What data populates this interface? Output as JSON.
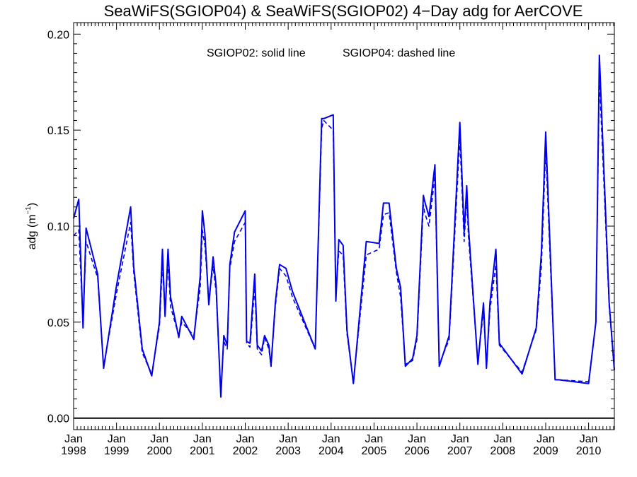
{
  "chart_data": {
    "type": "line",
    "title": "SeaWiFS(SGIOP04) & SeaWiFS(SGIOP02) 4−Day adg for AerCOVE",
    "annotation": {
      "solid": "SGIOP02: solid line",
      "dashed": "SGIOP04: dashed line"
    },
    "ylabel": {
      "main": "adg (m",
      "exp": "−1",
      "close": ")"
    },
    "xlabel": "",
    "xlim": [
      1998.0,
      2010.6
    ],
    "ylim": [
      -0.006,
      0.206
    ],
    "y_ticks": [
      0.0,
      0.05,
      0.1,
      0.15,
      0.2
    ],
    "y_tick_labels": [
      "0.00",
      "0.05",
      "0.10",
      "0.15",
      "0.20"
    ],
    "x_ticks": [
      {
        "x": 1998,
        "month": "Jan",
        "year": "1998"
      },
      {
        "x": 1999,
        "month": "Jan",
        "year": "1999"
      },
      {
        "x": 2000,
        "month": "Jan",
        "year": "2000"
      },
      {
        "x": 2001,
        "month": "Jan",
        "year": "2001"
      },
      {
        "x": 2002,
        "month": "Jan",
        "year": "2002"
      },
      {
        "x": 2003,
        "month": "Jan",
        "year": "2003"
      },
      {
        "x": 2004,
        "month": "Jan",
        "year": "2004"
      },
      {
        "x": 2005,
        "month": "Jan",
        "year": "2005"
      },
      {
        "x": 2006,
        "month": "Jan",
        "year": "2006"
      },
      {
        "x": 2007,
        "month": "Jan",
        "year": "2007"
      },
      {
        "x": 2008,
        "month": "Jan",
        "year": "2008"
      },
      {
        "x": 2009,
        "month": "Jan",
        "year": "2009"
      },
      {
        "x": 2010,
        "month": "Jan",
        "year": "2010"
      }
    ],
    "reference_line": 0.0,
    "colors": {
      "series": "#0000ee",
      "axes": "#000000"
    },
    "series": [
      {
        "name": "SGIOP02",
        "style": "solid",
        "x": [
          1998.0,
          1998.12,
          1998.22,
          1998.29,
          1998.56,
          1998.7,
          1999.0,
          1999.33,
          1999.4,
          1999.6,
          1999.82,
          2000.0,
          2000.07,
          2000.13,
          2000.2,
          2000.26,
          2000.45,
          2000.52,
          2000.8,
          2000.95,
          2001.0,
          2001.06,
          2001.15,
          2001.25,
          2001.32,
          2001.43,
          2001.5,
          2001.58,
          2001.64,
          2001.75,
          2002.0,
          2002.03,
          2002.11,
          2002.22,
          2002.28,
          2002.38,
          2002.45,
          2002.55,
          2002.6,
          2002.7,
          2002.8,
          2002.95,
          2003.1,
          2003.63,
          2003.78,
          2003.83,
          2004.05,
          2004.11,
          2004.18,
          2004.28,
          2004.37,
          2004.52,
          2004.82,
          2005.12,
          2005.22,
          2005.35,
          2005.52,
          2005.62,
          2005.73,
          2005.9,
          2006.0,
          2006.15,
          2006.18,
          2006.28,
          2006.42,
          2006.52,
          2006.75,
          2007.0,
          2007.1,
          2007.16,
          2007.2,
          2007.42,
          2007.55,
          2007.62,
          2007.7,
          2007.84,
          2007.92,
          2008.45,
          2008.78,
          2008.9,
          2009.0,
          2009.22,
          2009.3,
          2010.0,
          2010.17,
          2010.25,
          2010.48,
          2010.6
        ],
        "y": [
          0.104,
          0.114,
          0.047,
          0.099,
          0.075,
          0.026,
          0.069,
          0.11,
          0.079,
          0.036,
          0.022,
          0.05,
          0.088,
          0.053,
          0.088,
          0.063,
          0.042,
          0.053,
          0.041,
          0.074,
          0.108,
          0.096,
          0.059,
          0.084,
          0.069,
          0.011,
          0.043,
          0.038,
          0.08,
          0.097,
          0.108,
          0.04,
          0.039,
          0.075,
          0.038,
          0.035,
          0.043,
          0.038,
          0.027,
          0.06,
          0.08,
          0.078,
          0.066,
          0.036,
          0.156,
          0.156,
          0.158,
          0.061,
          0.093,
          0.09,
          0.046,
          0.018,
          0.092,
          0.091,
          0.112,
          0.112,
          0.078,
          0.068,
          0.027,
          0.031,
          0.043,
          0.116,
          0.113,
          0.105,
          0.132,
          0.027,
          0.043,
          0.154,
          0.097,
          0.121,
          0.1,
          0.028,
          0.06,
          0.026,
          0.06,
          0.088,
          0.039,
          0.023,
          0.047,
          0.086,
          0.149,
          0.02,
          0.02,
          0.018,
          0.05,
          0.189,
          0.06,
          0.025
        ]
      },
      {
        "name": "SGIOP04",
        "style": "dashed",
        "x": [
          1998.0,
          1998.12,
          1998.22,
          1998.29,
          1998.56,
          1998.7,
          1999.0,
          1999.33,
          1999.4,
          1999.6,
          1999.82,
          2000.0,
          2000.07,
          2000.13,
          2000.2,
          2000.26,
          2000.45,
          2000.52,
          2000.8,
          2000.95,
          2001.0,
          2001.06,
          2001.15,
          2001.25,
          2001.32,
          2001.43,
          2001.5,
          2001.58,
          2001.64,
          2001.75,
          2002.0,
          2002.03,
          2002.11,
          2002.22,
          2002.28,
          2002.38,
          2002.45,
          2002.55,
          2002.6,
          2002.7,
          2002.8,
          2002.95,
          2003.1,
          2003.63,
          2003.78,
          2003.83,
          2004.05,
          2004.11,
          2004.18,
          2004.28,
          2004.37,
          2004.52,
          2004.82,
          2005.12,
          2005.22,
          2005.35,
          2005.52,
          2005.62,
          2005.73,
          2005.9,
          2006.0,
          2006.15,
          2006.18,
          2006.28,
          2006.42,
          2006.52,
          2006.75,
          2007.0,
          2007.1,
          2007.16,
          2007.2,
          2007.42,
          2007.55,
          2007.62,
          2007.7,
          2007.84,
          2007.92,
          2008.45,
          2008.78,
          2008.9,
          2009.0,
          2009.22,
          2009.3,
          2010.0,
          2010.17,
          2010.25,
          2010.48,
          2010.6
        ],
        "y": [
          0.095,
          0.098,
          0.05,
          0.092,
          0.073,
          0.027,
          0.065,
          0.102,
          0.076,
          0.034,
          0.023,
          0.048,
          0.08,
          0.055,
          0.082,
          0.058,
          0.043,
          0.05,
          0.043,
          0.068,
          0.098,
          0.09,
          0.062,
          0.079,
          0.066,
          0.013,
          0.04,
          0.036,
          0.078,
          0.092,
          0.102,
          0.039,
          0.037,
          0.068,
          0.036,
          0.033,
          0.042,
          0.036,
          0.027,
          0.058,
          0.078,
          0.074,
          0.063,
          0.036,
          0.151,
          0.155,
          0.15,
          0.065,
          0.087,
          0.085,
          0.044,
          0.019,
          0.085,
          0.088,
          0.106,
          0.107,
          0.076,
          0.063,
          0.028,
          0.03,
          0.041,
          0.111,
          0.107,
          0.1,
          0.126,
          0.028,
          0.041,
          0.146,
          0.092,
          0.115,
          0.095,
          0.029,
          0.056,
          0.027,
          0.056,
          0.08,
          0.038,
          0.024,
          0.046,
          0.079,
          0.14,
          0.02,
          0.02,
          0.019,
          0.05,
          0.178,
          0.058,
          0.026
        ]
      }
    ]
  }
}
